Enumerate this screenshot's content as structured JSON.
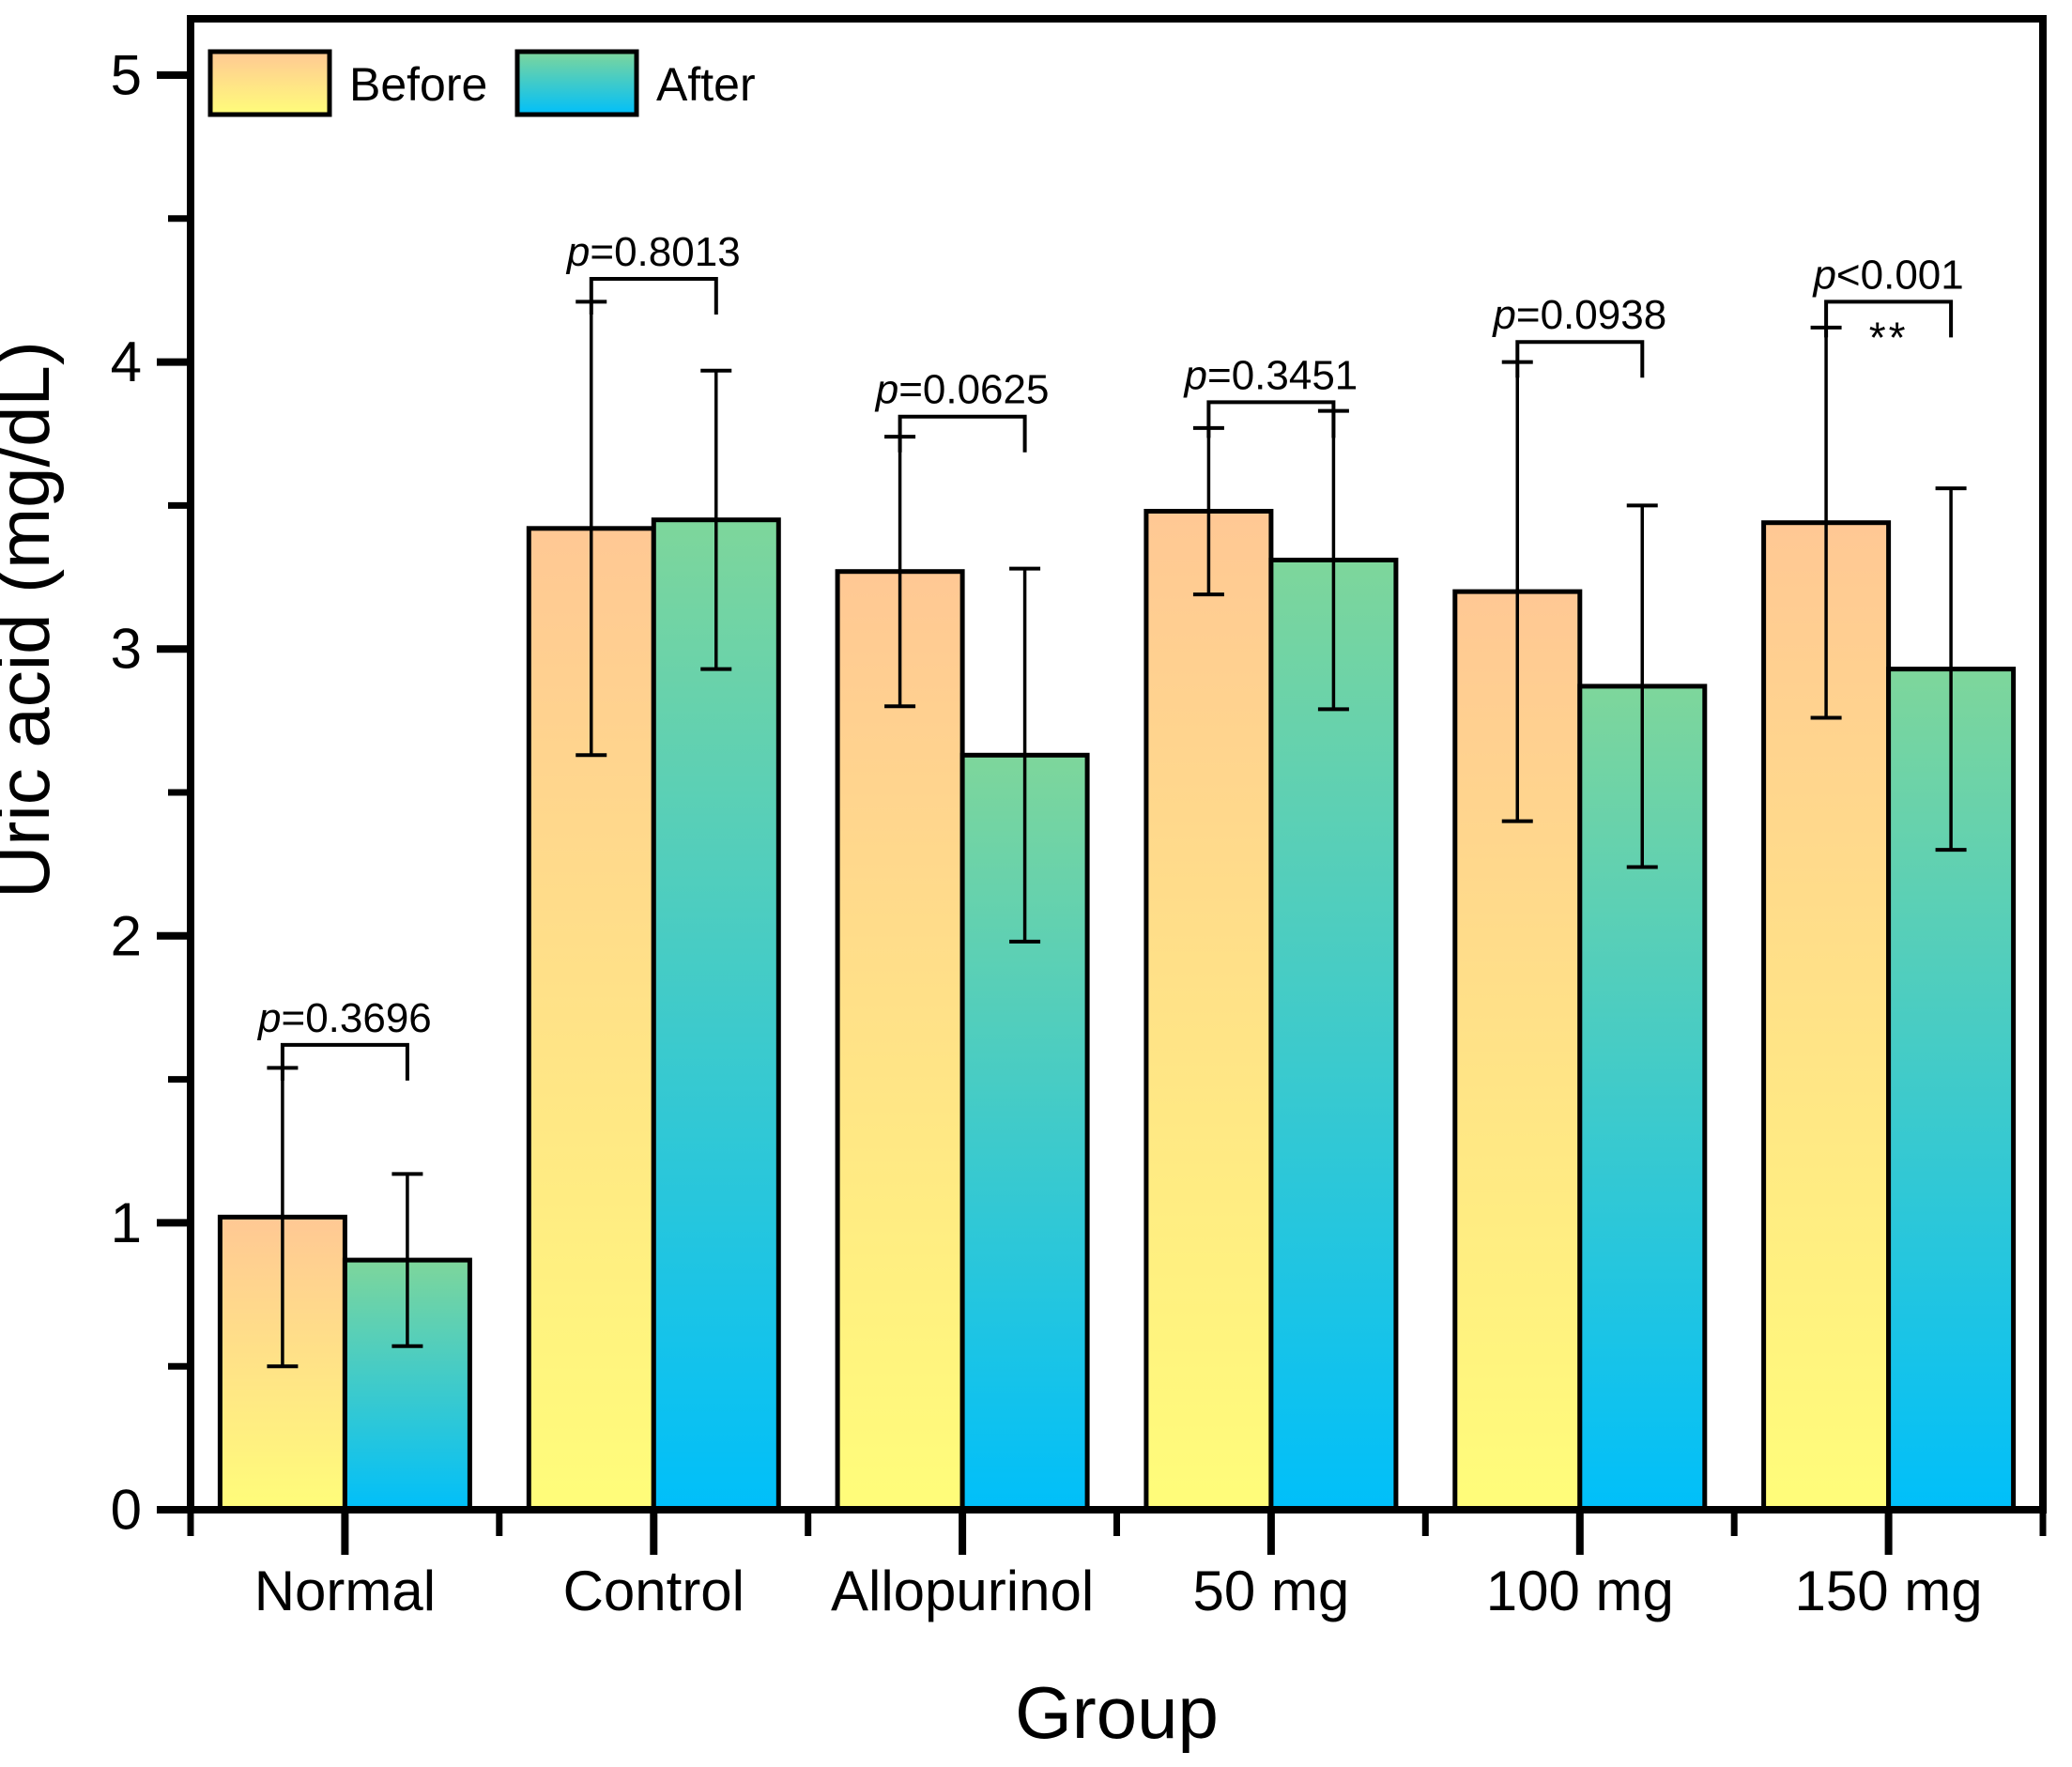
{
  "figure": {
    "background": "#FFFFFF",
    "foreground": "#000000"
  },
  "chart_data": {
    "type": "bar",
    "title": "",
    "xlabel": "Group",
    "ylabel": "Uric acid (mg/dL)",
    "categories": [
      "Normal",
      "Control",
      "Allopurinol",
      "50 mg",
      "100 mg",
      "150 mg"
    ],
    "series": [
      {
        "name": "Before",
        "values": [
          1.02,
          3.42,
          3.27,
          3.48,
          3.2,
          3.44
        ],
        "errors": [
          0.52,
          0.79,
          0.47,
          0.29,
          0.8,
          0.68
        ],
        "gradient": [
          "#FFC894",
          "#FFFD7A"
        ]
      },
      {
        "name": "After",
        "values": [
          0.87,
          3.45,
          2.63,
          3.31,
          2.87,
          2.93
        ],
        "errors": [
          0.3,
          0.52,
          0.65,
          0.52,
          0.63,
          0.63
        ],
        "gradient": [
          "#7ED69B",
          "#00BFFA"
        ]
      }
    ],
    "annotations": [
      {
        "category": "Normal",
        "label": "p=0.3696",
        "stars": "",
        "bracket_y": 1.62
      },
      {
        "category": "Control",
        "label": "p=0.8013",
        "stars": "",
        "bracket_y": 4.29
      },
      {
        "category": "Allopurinol",
        "label": "p=0.0625",
        "stars": "",
        "bracket_y": 3.81
      },
      {
        "category": "50 mg",
        "label": "p=0.3451",
        "stars": "",
        "bracket_y": 3.86
      },
      {
        "category": "100 mg",
        "label": "p=0.0938",
        "stars": "",
        "bracket_y": 4.07
      },
      {
        "category": "150 mg",
        "label": "p<0.001",
        "stars": "**",
        "bracket_y": 4.21
      }
    ],
    "yticks": {
      "major": [
        0,
        1,
        2,
        3,
        4,
        5
      ],
      "labels": [
        "0",
        "1",
        "2",
        "3",
        "4",
        "5"
      ],
      "minor": [
        0.5,
        1.5,
        2.5,
        3.5,
        4.5
      ]
    },
    "ylim": [
      0,
      5.2
    ],
    "grid": false,
    "legend_position": "top-left",
    "legend": [
      "Before",
      "After"
    ],
    "axis_color": "#000000"
  }
}
